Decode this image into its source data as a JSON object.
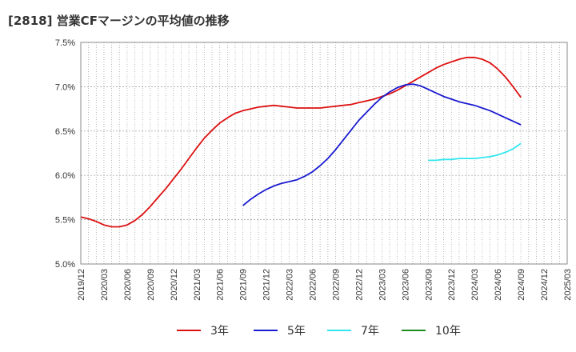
{
  "chart_data": {
    "type": "line",
    "title": "[2818]  営業CFマージンの平均値の推移",
    "xlabel": "",
    "ylabel": "",
    "ylim": [
      5.0,
      7.5
    ],
    "y_ticks": [
      "5.0%",
      "5.5%",
      "6.0%",
      "6.5%",
      "7.0%",
      "7.5%"
    ],
    "x_ticks": [
      "2019/12",
      "2020/03",
      "2020/06",
      "2020/09",
      "2020/12",
      "2021/03",
      "2021/06",
      "2021/09",
      "2021/12",
      "2022/03",
      "2022/06",
      "2022/09",
      "2022/12",
      "2023/03",
      "2023/06",
      "2023/09",
      "2023/12",
      "2024/03",
      "2024/06",
      "2024/09",
      "2024/12",
      "2025/03"
    ],
    "grid": true,
    "legend_position": "bottom",
    "series": [
      {
        "name": "3年",
        "color": "#dd1111",
        "x": [
          "2019/12",
          "2020/01",
          "2020/02",
          "2020/03",
          "2020/04",
          "2020/05",
          "2020/06",
          "2020/07",
          "2020/08",
          "2020/09",
          "2020/10",
          "2020/11",
          "2020/12",
          "2021/01",
          "2021/02",
          "2021/03",
          "2021/04",
          "2021/05",
          "2021/06",
          "2021/07",
          "2021/08",
          "2021/09",
          "2021/10",
          "2021/11",
          "2021/12",
          "2022/01",
          "2022/02",
          "2022/03",
          "2022/04",
          "2022/05",
          "2022/06",
          "2022/07",
          "2022/08",
          "2022/09",
          "2022/10",
          "2022/11",
          "2022/12",
          "2023/01",
          "2023/02",
          "2023/03",
          "2023/04",
          "2023/05",
          "2023/06",
          "2023/07",
          "2023/08",
          "2023/09",
          "2023/10",
          "2023/11",
          "2023/12",
          "2024/01",
          "2024/02",
          "2024/03",
          "2024/04",
          "2024/05",
          "2024/06",
          "2024/07",
          "2024/08",
          "2024/09"
        ],
        "values": [
          5.53,
          5.51,
          5.48,
          5.44,
          5.42,
          5.42,
          5.44,
          5.49,
          5.56,
          5.65,
          5.75,
          5.85,
          5.96,
          6.07,
          6.19,
          6.31,
          6.42,
          6.51,
          6.59,
          6.65,
          6.7,
          6.73,
          6.75,
          6.77,
          6.78,
          6.79,
          6.78,
          6.77,
          6.76,
          6.76,
          6.76,
          6.76,
          6.77,
          6.78,
          6.79,
          6.8,
          6.82,
          6.84,
          6.86,
          6.89,
          6.92,
          6.96,
          7.01,
          7.06,
          7.11,
          7.16,
          7.21,
          7.25,
          7.28,
          7.31,
          7.33,
          7.33,
          7.31,
          7.27,
          7.2,
          7.11,
          7.0,
          6.88
        ]
      },
      {
        "name": "5年",
        "color": "#1a1ad0",
        "x": [
          "2021/09",
          "2021/10",
          "2021/11",
          "2021/12",
          "2022/01",
          "2022/02",
          "2022/03",
          "2022/04",
          "2022/05",
          "2022/06",
          "2022/07",
          "2022/08",
          "2022/09",
          "2022/10",
          "2022/11",
          "2022/12",
          "2023/01",
          "2023/02",
          "2023/03",
          "2023/04",
          "2023/05",
          "2023/06",
          "2023/07",
          "2023/08",
          "2023/09",
          "2023/10",
          "2023/11",
          "2023/12",
          "2024/01",
          "2024/02",
          "2024/03",
          "2024/04",
          "2024/05",
          "2024/06",
          "2024/07",
          "2024/08",
          "2024/09"
        ],
        "values": [
          5.66,
          5.73,
          5.79,
          5.84,
          5.88,
          5.91,
          5.93,
          5.95,
          5.99,
          6.04,
          6.11,
          6.19,
          6.29,
          6.4,
          6.51,
          6.62,
          6.71,
          6.8,
          6.88,
          6.94,
          6.99,
          7.02,
          7.03,
          7.01,
          6.97,
          6.93,
          6.89,
          6.86,
          6.83,
          6.81,
          6.79,
          6.76,
          6.73,
          6.69,
          6.65,
          6.61,
          6.57
        ]
      },
      {
        "name": "7年",
        "color": "#33e6ee",
        "x": [
          "2023/09",
          "2023/10",
          "2023/11",
          "2023/12",
          "2024/01",
          "2024/02",
          "2024/03",
          "2024/04",
          "2024/05",
          "2024/06",
          "2024/07",
          "2024/08",
          "2024/09"
        ],
        "values": [
          6.17,
          6.17,
          6.18,
          6.18,
          6.19,
          6.19,
          6.19,
          6.2,
          6.21,
          6.23,
          6.26,
          6.3,
          6.36
        ]
      },
      {
        "name": "10年",
        "color": "#1e8c1e",
        "x": [],
        "values": []
      }
    ]
  }
}
